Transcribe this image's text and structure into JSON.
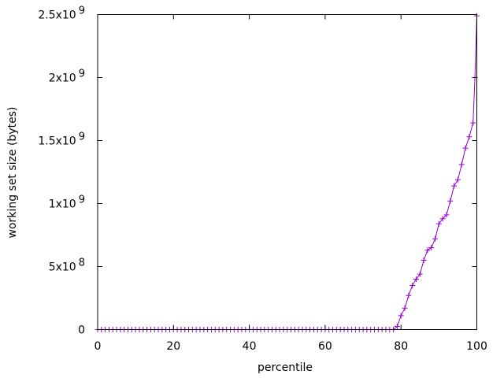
{
  "chart_data": {
    "type": "line",
    "title": "",
    "xlabel": "percentile",
    "ylabel": "working set size (bytes)",
    "xlim": [
      0,
      100
    ],
    "ylim": [
      0,
      2500000000
    ],
    "xticks": [
      {
        "value": 0,
        "label": "0"
      },
      {
        "value": 20,
        "label": "20"
      },
      {
        "value": 40,
        "label": "40"
      },
      {
        "value": 60,
        "label": "60"
      },
      {
        "value": 80,
        "label": "80"
      },
      {
        "value": 100,
        "label": "100"
      }
    ],
    "yticks": [
      {
        "value": 0,
        "mant": "0",
        "exp": ""
      },
      {
        "value": 500000000,
        "mant": "5x10",
        "exp": "8"
      },
      {
        "value": 1000000000,
        "mant": "1x10",
        "exp": "9"
      },
      {
        "value": 1500000000,
        "mant": "1.5x10",
        "exp": "9"
      },
      {
        "value": 2000000000,
        "mant": "2x10",
        "exp": "9"
      },
      {
        "value": 2500000000,
        "mant": "2.5x10",
        "exp": "9"
      }
    ],
    "grid": false,
    "legend": "none",
    "series": [
      {
        "color": "#9400d3",
        "marker": "plus",
        "x": [
          0,
          1,
          2,
          3,
          4,
          5,
          6,
          7,
          8,
          9,
          10,
          11,
          12,
          13,
          14,
          15,
          16,
          17,
          18,
          19,
          20,
          21,
          22,
          23,
          24,
          25,
          26,
          27,
          28,
          29,
          30,
          31,
          32,
          33,
          34,
          35,
          36,
          37,
          38,
          39,
          40,
          41,
          42,
          43,
          44,
          45,
          46,
          47,
          48,
          49,
          50,
          51,
          52,
          53,
          54,
          55,
          56,
          57,
          58,
          59,
          60,
          61,
          62,
          63,
          64,
          65,
          66,
          67,
          68,
          69,
          70,
          71,
          72,
          73,
          74,
          75,
          76,
          77,
          78,
          79,
          80,
          81,
          82,
          83,
          84,
          85,
          86,
          87,
          88,
          89,
          90,
          91,
          92,
          93,
          94,
          95,
          96,
          97,
          98,
          99,
          99.5,
          100
        ],
        "y": [
          0,
          0,
          0,
          0,
          0,
          0,
          0,
          0,
          0,
          0,
          0,
          0,
          0,
          0,
          0,
          0,
          0,
          0,
          0,
          0,
          0,
          0,
          0,
          0,
          0,
          0,
          0,
          0,
          0,
          0,
          0,
          0,
          0,
          0,
          0,
          0,
          0,
          0,
          0,
          0,
          0,
          0,
          0,
          0,
          0,
          0,
          0,
          0,
          0,
          0,
          0,
          0,
          0,
          0,
          0,
          0,
          0,
          0,
          0,
          0,
          0,
          0,
          0,
          0,
          0,
          0,
          0,
          0,
          0,
          0,
          0,
          0,
          0,
          0,
          0,
          0,
          0,
          0,
          0,
          25000000,
          110000000,
          170000000,
          270000000,
          350000000,
          400000000,
          440000000,
          550000000,
          630000000,
          650000000,
          720000000,
          840000000,
          880000000,
          910000000,
          1020000000,
          1140000000,
          1190000000,
          1310000000,
          1440000000,
          1530000000,
          1640000000,
          2000000000,
          2490000000
        ]
      }
    ]
  }
}
